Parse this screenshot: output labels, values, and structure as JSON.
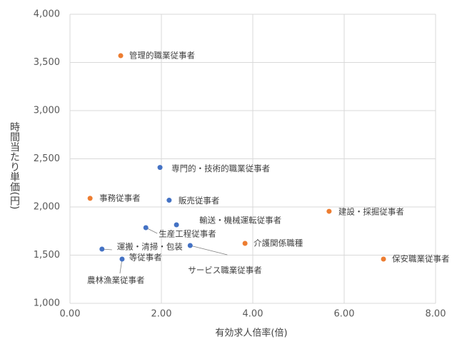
{
  "chart_data": {
    "type": "scatter",
    "xlabel": "有効求人倍率(倍)",
    "ylabel": "時間当たり単価(円)",
    "xlim": [
      0,
      8
    ],
    "xticks": [
      {
        "value": 0,
        "label": "0.00"
      },
      {
        "value": 2,
        "label": "2.00"
      },
      {
        "value": 4,
        "label": "4.00"
      },
      {
        "value": 6,
        "label": "6.00"
      },
      {
        "value": 8,
        "label": "8.00"
      }
    ],
    "ylim": [
      1000,
      4000
    ],
    "yticks": [
      {
        "value": 1000,
        "label": "1,000"
      },
      {
        "value": 1500,
        "label": "1,500"
      },
      {
        "value": 2000,
        "label": "2,000"
      },
      {
        "value": 2500,
        "label": "2,500"
      },
      {
        "value": 3000,
        "label": "3,000"
      },
      {
        "value": 3500,
        "label": "3,500"
      },
      {
        "value": 4000,
        "label": "4,000"
      }
    ],
    "grid": true,
    "series": [
      {
        "color": "#4472c4",
        "x": [
          1.97,
          2.17,
          2.33,
          1.66,
          2.63,
          0.7,
          1.14
        ],
        "values": [
          2410,
          2070,
          1815,
          1785,
          1600,
          1563,
          1459
        ],
        "labels": [
          [
            "専門的・技術的職業従事者"
          ],
          [
            "販売従事者"
          ],
          [
            "輸送・機械運転従事者"
          ],
          [
            "生産工程従事者"
          ],
          [
            "サービス職業従事者"
          ],
          [
            "運搬・清掃・包装",
            "等従事者"
          ],
          [
            "農林漁業従事者"
          ]
        ]
      },
      {
        "color": "#ed7d31",
        "x": [
          1.11,
          0.44,
          5.67,
          3.83,
          6.86
        ],
        "values": [
          3570,
          2090,
          1955,
          1622,
          1459
        ],
        "labels": [
          [
            "管理的職業従事者"
          ],
          [
            "事務従事者"
          ],
          [
            "建設・採掘従事者"
          ],
          [
            "介護関係職種"
          ],
          [
            "保安職業従事者"
          ]
        ]
      }
    ]
  }
}
